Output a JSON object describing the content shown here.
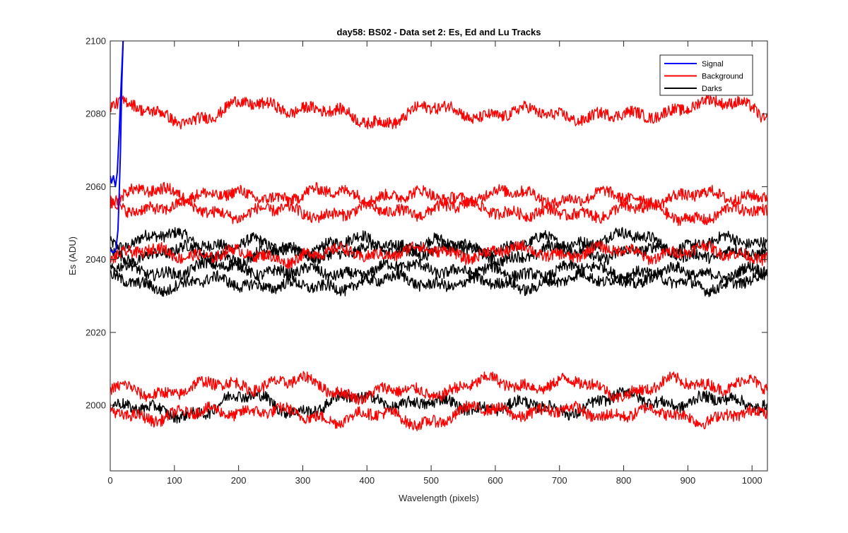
{
  "chart_data": {
    "type": "line",
    "title": "day58: BS02 - Data set 2: Es, Ed and Lu Tracks",
    "xlabel": "Wavelength (pixels)",
    "ylabel": "Es (ADU)",
    "xlim": [
      0,
      1024
    ],
    "ylim": [
      1982,
      2100
    ],
    "x_ticks": [
      0,
      100,
      200,
      300,
      400,
      500,
      600,
      700,
      800,
      900,
      1000
    ],
    "x_tick_labels": [
      "0",
      "100",
      "200",
      "300",
      "400",
      "500",
      "600",
      "700",
      "800",
      "900",
      "1000"
    ],
    "y_ticks": [
      2000,
      2020,
      2040,
      2060,
      2080,
      2100
    ],
    "y_tick_labels": [
      "2000",
      "2020",
      "2040",
      "2060",
      "2080",
      "2100"
    ],
    "grid": false,
    "legend_position": "top-right",
    "legend": [
      "Signal",
      "Background",
      "Darks"
    ],
    "colors": {
      "Signal": "#0000ff",
      "Background": "#ff0000",
      "Darks": "#000000"
    },
    "series": [
      {
        "name": "Signal",
        "group": "Signal",
        "color": "#0000ff",
        "x": [
          0,
          3,
          6,
          9,
          12,
          14,
          16,
          18,
          20
        ],
        "y": [
          2043,
          2042,
          2042,
          2043,
          2048,
          2058,
          2070,
          2088,
          2100
        ]
      },
      {
        "name": "Signal",
        "group": "Signal",
        "color": "#0000ff",
        "x": [
          0,
          2,
          5,
          8,
          11,
          14,
          17,
          20
        ],
        "y": [
          2063,
          2061,
          2063,
          2060,
          2064,
          2075,
          2088,
          2100
        ]
      },
      {
        "name": "Background",
        "group": "Background",
        "color": "#ff0000",
        "x": [
          0,
          100,
          200,
          300,
          400,
          500,
          600,
          700,
          800,
          900,
          1000,
          1024
        ],
        "y": [
          2084,
          2078,
          2082,
          2082,
          2078,
          2081,
          2080,
          2080,
          2079,
          2082,
          2083,
          2080
        ]
      },
      {
        "name": "Background",
        "group": "Background",
        "color": "#ff0000",
        "x": [
          0,
          100,
          200,
          300,
          400,
          500,
          600,
          700,
          800,
          900,
          1000,
          1024
        ],
        "y": [
          2057,
          2059,
          2057,
          2058,
          2058,
          2057,
          2058,
          2057,
          2057,
          2057,
          2058,
          2058
        ]
      },
      {
        "name": "Background",
        "group": "Background",
        "color": "#ff0000",
        "x": [
          0,
          100,
          200,
          300,
          400,
          500,
          600,
          700,
          800,
          900,
          1000,
          1024
        ],
        "y": [
          2055,
          2054,
          2053,
          2053,
          2053,
          2054,
          2054,
          2052,
          2054,
          2052,
          2053,
          2053
        ]
      },
      {
        "name": "Background",
        "group": "Background",
        "color": "#ff0000",
        "x": [
          0,
          100,
          200,
          300,
          400,
          500,
          600,
          700,
          800,
          900,
          1000,
          1024
        ],
        "y": [
          2041,
          2042,
          2041,
          2041,
          2042,
          2042,
          2042,
          2042,
          2042,
          2042,
          2042,
          2041
        ]
      },
      {
        "name": "Background",
        "group": "Background",
        "color": "#ff0000",
        "x": [
          0,
          100,
          200,
          300,
          400,
          500,
          600,
          700,
          800,
          900,
          1000,
          1024
        ],
        "y": [
          2004,
          2004,
          2006,
          2006,
          2003,
          2004,
          2006,
          2006,
          2004,
          2006,
          2006,
          2004
        ]
      },
      {
        "name": "Background",
        "group": "Background",
        "color": "#ff0000",
        "x": [
          0,
          100,
          200,
          300,
          400,
          500,
          600,
          700,
          800,
          900,
          1000,
          1024
        ],
        "y": [
          1998,
          1997,
          1999,
          1997,
          1997,
          1996,
          1999,
          1998,
          1998,
          1997,
          1997,
          1997
        ]
      },
      {
        "name": "Darks",
        "group": "Darks",
        "color": "#000000",
        "x": [
          0,
          100,
          200,
          300,
          400,
          500,
          600,
          700,
          800,
          900,
          1000,
          1024
        ],
        "y": [
          2045,
          2046,
          2044,
          2043,
          2045,
          2044,
          2043,
          2045,
          2046,
          2044,
          2045,
          2045
        ]
      },
      {
        "name": "Darks",
        "group": "Darks",
        "color": "#000000",
        "x": [
          0,
          100,
          200,
          300,
          400,
          500,
          600,
          700,
          800,
          900,
          1000,
          1024
        ],
        "y": [
          2041,
          2042,
          2041,
          2042,
          2042,
          2043,
          2041,
          2042,
          2042,
          2042,
          2041,
          2041
        ]
      },
      {
        "name": "Darks",
        "group": "Darks",
        "color": "#000000",
        "x": [
          0,
          100,
          200,
          300,
          400,
          500,
          600,
          700,
          800,
          900,
          1000,
          1024
        ],
        "y": [
          2037,
          2037,
          2038,
          2036,
          2037,
          2038,
          2036,
          2037,
          2037,
          2036,
          2037,
          2036
        ]
      },
      {
        "name": "Darks",
        "group": "Darks",
        "color": "#000000",
        "x": [
          0,
          100,
          200,
          300,
          400,
          500,
          600,
          700,
          800,
          900,
          1000,
          1024
        ],
        "y": [
          2034,
          2033,
          2034,
          2032,
          2034,
          2034,
          2033,
          2034,
          2035,
          2033,
          2034,
          2034
        ]
      },
      {
        "name": "Darks",
        "group": "Darks",
        "color": "#000000",
        "x": [
          0,
          100,
          200,
          300,
          400,
          500,
          600,
          700,
          800,
          900,
          1000,
          1024
        ],
        "y": [
          2001,
          1997,
          2002,
          1999,
          2002,
          2000,
          2000,
          1999,
          2002,
          2001,
          2001,
          2001
        ]
      }
    ]
  }
}
